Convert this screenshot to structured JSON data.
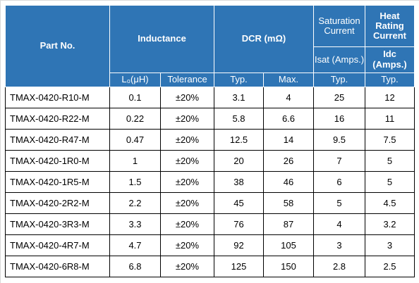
{
  "header": {
    "part_no": "Part No.",
    "inductance": "Inductance",
    "dcr": "DCR (mΩ)",
    "saturation_current": "Saturation Current",
    "heat_rating_current": "Heat Rating Current",
    "isat_unit": "Isat (Amps.)",
    "idc_unit": "Idc (Amps.)",
    "l0": "L₀(μH)",
    "tolerance": "Tolerance",
    "dcr_typ": "Typ.",
    "dcr_max": "Max.",
    "isat_typ": "Typ.",
    "idc_typ": "Typ."
  },
  "rows": [
    {
      "part": "TMAX-0420-R10-M",
      "l0": "0.1",
      "tol": "±20%",
      "dcr_typ": "3.1",
      "dcr_max": "4",
      "isat": "25",
      "idc": "12"
    },
    {
      "part": "TMAX-0420-R22-M",
      "l0": "0.22",
      "tol": "±20%",
      "dcr_typ": "5.8",
      "dcr_max": "6.6",
      "isat": "16",
      "idc": "11"
    },
    {
      "part": "TMAX-0420-R47-M",
      "l0": "0.47",
      "tol": "±20%",
      "dcr_typ": "12.5",
      "dcr_max": "14",
      "isat": "9.5",
      "idc": "7.5"
    },
    {
      "part": "TMAX-0420-1R0-M",
      "l0": "1",
      "tol": "±20%",
      "dcr_typ": "20",
      "dcr_max": "26",
      "isat": "7",
      "idc": "5"
    },
    {
      "part": "TMAX-0420-1R5-M",
      "l0": "1.5",
      "tol": "±20%",
      "dcr_typ": "38",
      "dcr_max": "46",
      "isat": "6",
      "idc": "5"
    },
    {
      "part": "TMAX-0420-2R2-M",
      "l0": "2.2",
      "tol": "±20%",
      "dcr_typ": "45",
      "dcr_max": "58",
      "isat": "5",
      "idc": "4.5"
    },
    {
      "part": "TMAX-0420-3R3-M",
      "l0": "3.3",
      "tol": "±20%",
      "dcr_typ": "76",
      "dcr_max": "87",
      "isat": "4",
      "idc": "3.2"
    },
    {
      "part": "TMAX-0420-4R7-M",
      "l0": "4.7",
      "tol": "±20%",
      "dcr_typ": "92",
      "dcr_max": "105",
      "isat": "3",
      "idc": "3"
    },
    {
      "part": "TMAX-0420-6R8-M",
      "l0": "6.8",
      "tol": "±20%",
      "dcr_typ": "125",
      "dcr_max": "150",
      "isat": "2.8",
      "idc": "2.5"
    }
  ]
}
